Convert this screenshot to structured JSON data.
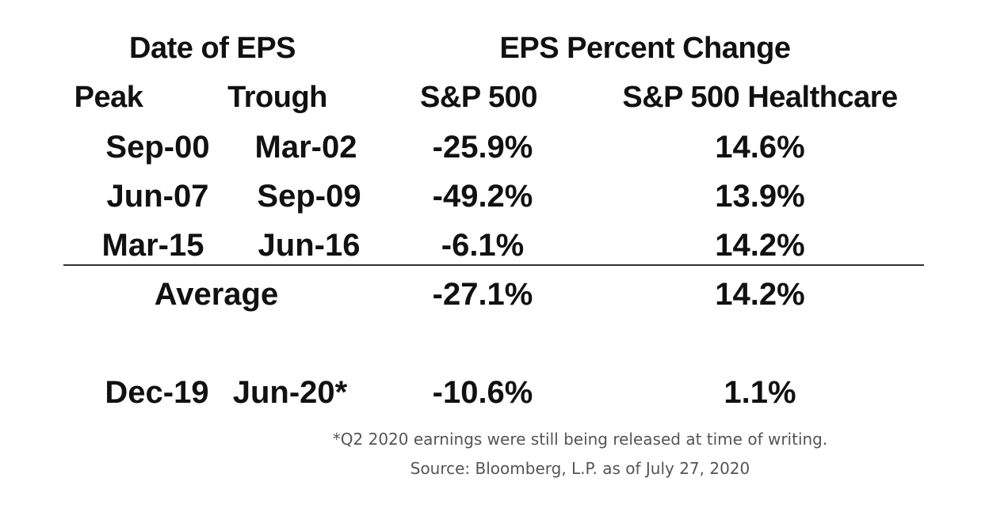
{
  "chart_data": {
    "type": "table",
    "group_headers": {
      "dates": "Date of EPS",
      "change": "EPS Percent Change"
    },
    "columns": [
      "Peak",
      "Trough",
      "S&P 500",
      "S&P 500 Healthcare"
    ],
    "rows": [
      [
        "Sep-00",
        "Mar-02",
        "-25.9%",
        "14.6%"
      ],
      [
        "Jun-07",
        "Sep-09",
        "-49.2%",
        "13.9%"
      ],
      [
        "Mar-15",
        "Jun-16",
        "-6.1%",
        "14.2%"
      ]
    ],
    "average": {
      "label": "Average",
      "sp500": "-27.1%",
      "healthcare": "14.2%"
    },
    "current": [
      "Dec-19",
      "Jun-20*",
      "-10.6%",
      "1.1%"
    ],
    "footnote": "*Q2 2020 earnings were still being released at time of writing.",
    "source": "Source: Bloomberg, L.P. as of July 27, 2020"
  }
}
